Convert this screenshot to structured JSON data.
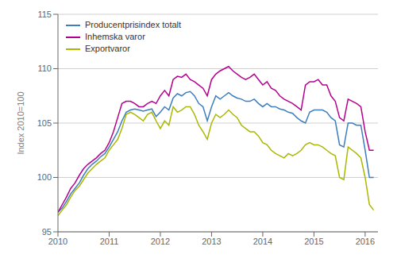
{
  "chart_data": {
    "type": "line",
    "ylabel": "Index 2010=100",
    "x": [
      2010,
      2010.0833333333333,
      2010.1666666666667,
      2010.25,
      2010.3333333333333,
      2010.4166666666667,
      2010.5,
      2010.5833333333333,
      2010.6666666666667,
      2010.75,
      2010.8333333333333,
      2010.9166666666667,
      2011,
      2011.0833333333333,
      2011.1666666666667,
      2011.25,
      2011.3333333333333,
      2011.4166666666667,
      2011.5,
      2011.5833333333333,
      2011.6666666666667,
      2011.75,
      2011.8333333333333,
      2011.9166666666667,
      2012,
      2012.0833333333333,
      2012.1666666666667,
      2012.25,
      2012.3333333333333,
      2012.4166666666667,
      2012.5,
      2012.5833333333333,
      2012.6666666666667,
      2012.75,
      2012.8333333333333,
      2012.9166666666667,
      2013,
      2013.0833333333333,
      2013.1666666666667,
      2013.25,
      2013.3333333333333,
      2013.4166666666667,
      2013.5,
      2013.5833333333333,
      2013.6666666666667,
      2013.75,
      2013.8333333333333,
      2013.9166666666667,
      2014,
      2014.0833333333333,
      2014.1666666666667,
      2014.25,
      2014.3333333333333,
      2014.4166666666667,
      2014.5,
      2014.5833333333333,
      2014.6666666666667,
      2014.75,
      2014.8333333333333,
      2014.9166666666667,
      2015,
      2015.0833333333333,
      2015.1666666666667,
      2015.25,
      2015.3333333333333,
      2015.4166666666667,
      2015.5,
      2015.5833333333333,
      2015.6666666666667,
      2015.75,
      2015.8333333333333,
      2015.9166666666667,
      2016,
      2016.0833333333333,
      2016.1666666666667
    ],
    "xlim": [
      2010.0,
      2016.25
    ],
    "xticks": [
      2010,
      2011,
      2012,
      2013,
      2014,
      2015,
      2016
    ],
    "ylim": [
      95,
      115
    ],
    "yticks": [
      95,
      100,
      105,
      110,
      115
    ],
    "grid": "y",
    "legend": "upper left",
    "series": [
      {
        "name": "Producentprisindex totalt",
        "color": "#3d7ebf",
        "values": [
          96.8,
          97.2,
          97.8,
          98.5,
          99.0,
          99.5,
          100.2,
          100.8,
          101.2,
          101.5,
          101.9,
          102.2,
          102.8,
          103.5,
          104.2,
          105.2,
          106.0,
          106.2,
          106.3,
          106.2,
          106.1,
          106.2,
          106.3,
          105.6,
          106.0,
          106.5,
          106.2,
          107.3,
          107.7,
          107.5,
          107.8,
          107.9,
          107.5,
          106.8,
          106.5,
          105.2,
          106.5,
          107.5,
          107.2,
          107.5,
          107.8,
          107.5,
          107.3,
          107.2,
          107.0,
          107.0,
          107.2,
          106.8,
          106.5,
          106.8,
          106.5,
          106.5,
          106.3,
          106.2,
          106.0,
          105.9,
          105.5,
          105.2,
          105.0,
          106.0,
          106.2,
          106.2,
          106.2,
          106.0,
          105.5,
          105.2,
          103.0,
          102.8,
          105.0,
          105.0,
          104.8,
          104.8,
          102.5,
          100.0,
          100.0
        ]
      },
      {
        "name": "Inhemska varor",
        "color": "#b5008f",
        "values": [
          96.8,
          97.5,
          98.2,
          99.0,
          99.5,
          100.2,
          100.8,
          101.2,
          101.5,
          101.8,
          102.2,
          102.5,
          103.2,
          104.2,
          105.5,
          106.8,
          107.0,
          107.0,
          106.8,
          106.5,
          106.5,
          106.8,
          107.0,
          106.8,
          107.5,
          108.0,
          107.5,
          109.0,
          109.3,
          109.2,
          109.5,
          109.0,
          108.8,
          108.5,
          108.2,
          107.5,
          109.0,
          109.5,
          109.8,
          110.0,
          110.2,
          109.8,
          109.5,
          109.2,
          109.0,
          109.2,
          109.5,
          109.0,
          108.5,
          108.8,
          108.2,
          108.0,
          107.5,
          107.2,
          107.0,
          106.8,
          106.5,
          106.2,
          108.5,
          108.8,
          108.8,
          109.0,
          108.5,
          108.5,
          107.5,
          107.0,
          105.5,
          105.2,
          107.2,
          107.0,
          106.8,
          106.5,
          104.2,
          102.5,
          102.5
        ]
      },
      {
        "name": "Exportvaror",
        "color": "#aab800",
        "values": [
          96.5,
          97.0,
          97.5,
          98.2,
          98.8,
          99.2,
          99.8,
          100.4,
          100.8,
          101.2,
          101.5,
          101.8,
          102.5,
          103.0,
          103.5,
          104.5,
          105.8,
          106.0,
          105.8,
          105.5,
          105.2,
          105.8,
          106.0,
          105.2,
          104.5,
          105.2,
          104.8,
          106.5,
          106.0,
          106.2,
          106.5,
          106.5,
          105.8,
          104.8,
          104.2,
          103.5,
          105.0,
          105.8,
          105.5,
          105.8,
          106.2,
          105.8,
          105.5,
          104.8,
          104.5,
          104.2,
          104.2,
          103.8,
          103.2,
          103.0,
          102.5,
          102.2,
          102.0,
          101.8,
          102.2,
          102.0,
          102.2,
          102.5,
          103.0,
          103.2,
          103.0,
          103.0,
          102.8,
          102.5,
          102.2,
          102.0,
          100.0,
          99.8,
          102.8,
          102.5,
          102.2,
          101.8,
          100.0,
          97.5,
          97.0
        ]
      }
    ]
  }
}
